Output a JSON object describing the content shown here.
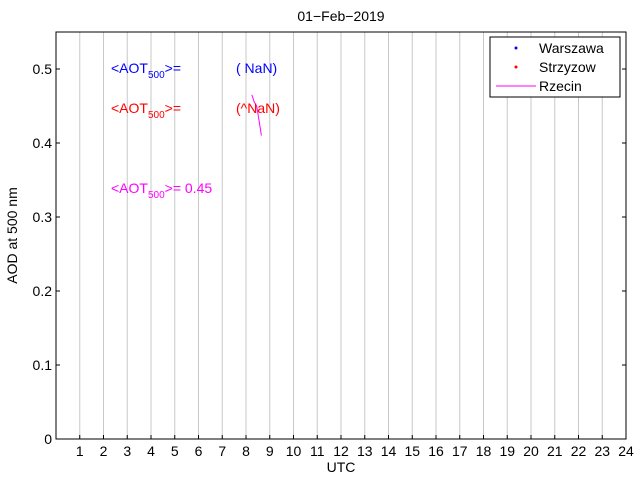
{
  "chart_data": {
    "type": "line",
    "title": "01−Feb−2019",
    "xlabel": "UTC",
    "ylabel": "AOD at 500 nm",
    "xlim": [
      0,
      24
    ],
    "ylim": [
      0,
      0.55
    ],
    "x_ticks": [
      "1",
      "2",
      "3",
      "4",
      "5",
      "6",
      "7",
      "8",
      "9",
      "10",
      "11",
      "12",
      "13",
      "14",
      "15",
      "16",
      "17",
      "18",
      "19",
      "20",
      "21",
      "22",
      "23",
      "24"
    ],
    "y_ticks": [
      "0",
      "0.1",
      "0.2",
      "0.3",
      "0.4",
      "0.5"
    ],
    "y_tick_values": [
      0,
      0.1,
      0.2,
      0.3,
      0.4,
      0.5
    ],
    "grid": "vertical",
    "legend_position": "top-right",
    "series": [
      {
        "name": "Warszawa",
        "marker": "dot",
        "color": "#0000ff",
        "x": [],
        "y": []
      },
      {
        "name": "Strzyzow",
        "marker": "dot",
        "color": "#ff0000",
        "x": [],
        "y": []
      },
      {
        "name": "Rzecin",
        "marker": "line",
        "color": "#ff00ff",
        "x": [
          8.25,
          8.35,
          8.45,
          8.55,
          8.65
        ],
        "y": [
          0.465,
          0.455,
          0.45,
          0.43,
          0.41
        ]
      }
    ],
    "annotations": [
      {
        "prefix": "<AOT",
        "sub": "500",
        "suffix": ">=",
        "value": "( NaN)",
        "color": "#0000ff"
      },
      {
        "prefix": "<AOT",
        "sub": "500",
        "suffix": ">=",
        "value": "(^NaN)",
        "color": "#ff0000"
      },
      {
        "prefix": "<AOT",
        "sub": "500",
        "suffix": ">= 0.45",
        "value": "",
        "color": "#ff00ff"
      }
    ]
  }
}
